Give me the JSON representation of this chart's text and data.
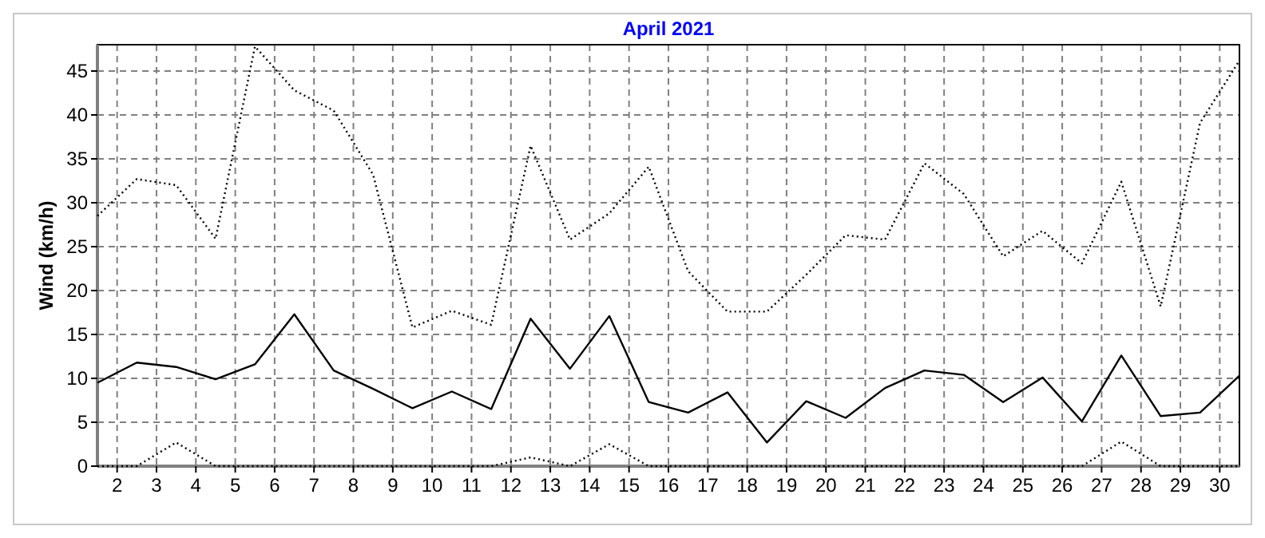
{
  "chart_data": {
    "type": "line",
    "title": "April 2021",
    "ylabel": "Wind (km/h)",
    "x": [
      1.5,
      2.5,
      3.5,
      4.5,
      5.5,
      6.5,
      7.5,
      8.5,
      9.5,
      10.5,
      11.5,
      12.5,
      13.5,
      14.5,
      15.5,
      16.5,
      17.5,
      18.5,
      19.5,
      20.5,
      21.5,
      22.5,
      23.5,
      24.5,
      25.5,
      26.5,
      27.5,
      28.5,
      29.5,
      30.5
    ],
    "xlim": [
      1.5,
      30.5
    ],
    "xticks": [
      2,
      3,
      4,
      5,
      6,
      7,
      8,
      9,
      10,
      11,
      12,
      13,
      14,
      15,
      16,
      17,
      18,
      19,
      20,
      21,
      22,
      23,
      24,
      25,
      26,
      27,
      28,
      29,
      30
    ],
    "ylim": [
      0,
      48
    ],
    "yticks": [
      0,
      5,
      10,
      15,
      20,
      25,
      30,
      35,
      40,
      45
    ],
    "grid": true,
    "marker": "none",
    "series": [
      {
        "color": "#000000",
        "line_style": "dotted",
        "values": [
          28.5,
          32.7,
          32,
          25.9,
          47.8,
          42.8,
          40.5,
          33.2,
          15.8,
          17.7,
          16.1,
          36.5,
          25.8,
          28.8,
          34.1,
          22.2,
          17.6,
          17.6,
          21.8,
          26.3,
          25.8,
          34.5,
          31,
          23.9,
          26.8,
          23.1,
          32.4,
          18.2,
          39.1,
          46.2
        ]
      },
      {
        "color": "#000000",
        "line_style": "solid",
        "values": [
          9.5,
          11.8,
          11.3,
          9.9,
          11.6,
          17.3,
          10.9,
          8.8,
          6.6,
          8.5,
          6.5,
          16.8,
          11.1,
          17.1,
          7.3,
          6.1,
          8.4,
          2.7,
          7.4,
          5.5,
          8.9,
          10.9,
          10.4,
          7.3,
          10.1,
          5.1,
          12.6,
          5.7,
          6.1,
          10.3
        ]
      },
      {
        "color": "#000000",
        "line_style": "dotted",
        "values": [
          0,
          0,
          2.7,
          0,
          0,
          0,
          0,
          0,
          0,
          0,
          0,
          1,
          0,
          2.5,
          0,
          0,
          0,
          0,
          0,
          0,
          0,
          0,
          0,
          0,
          0,
          0,
          2.8,
          0,
          0,
          0
        ]
      }
    ]
  }
}
